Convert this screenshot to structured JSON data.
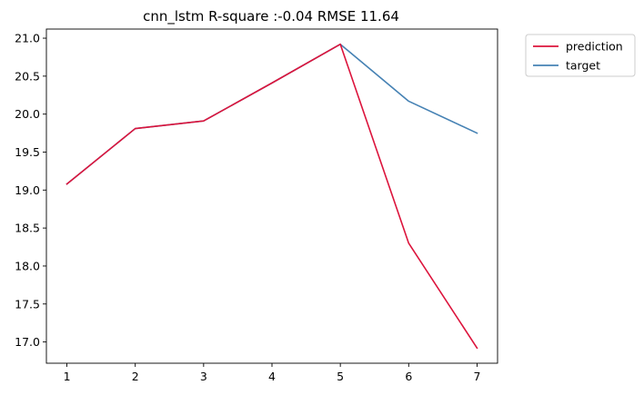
{
  "chart_data": {
    "type": "line",
    "title": "cnn_lstm R-square :-0.04 RMSE 11.64",
    "xlabel": "",
    "ylabel": "",
    "x": [
      1,
      2,
      3,
      4,
      5,
      6,
      7
    ],
    "xticks": [
      "1",
      "2",
      "3",
      "4",
      "5",
      "6",
      "7"
    ],
    "xlim": [
      0.7,
      7.3
    ],
    "ylim": [
      16.72,
      21.12
    ],
    "yticks": [
      17.0,
      17.5,
      18.0,
      18.5,
      19.0,
      19.5,
      20.0,
      20.5,
      21.0
    ],
    "ytick_labels": [
      "17.0",
      "17.5",
      "18.0",
      "18.5",
      "19.0",
      "19.5",
      "20.0",
      "20.5",
      "21.0"
    ],
    "grid": false,
    "legend_position": "outside-top-right",
    "series": [
      {
        "name": "prediction",
        "color": "#dc143c",
        "values": [
          19.08,
          19.81,
          19.91,
          20.41,
          20.92,
          18.3,
          16.92
        ]
      },
      {
        "name": "target",
        "color": "#4682b4",
        "values": [
          19.08,
          19.81,
          19.91,
          20.41,
          20.92,
          20.17,
          19.75
        ]
      }
    ]
  }
}
